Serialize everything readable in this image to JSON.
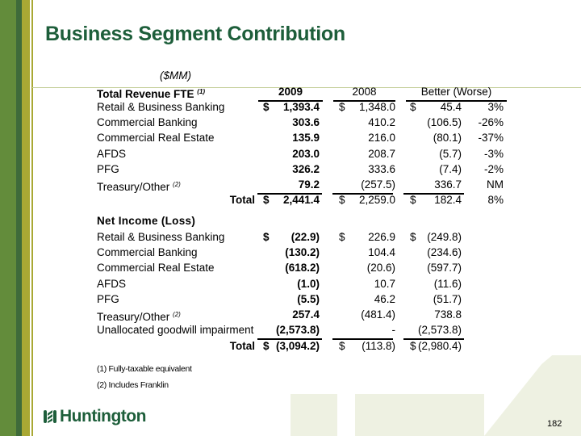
{
  "title": "Business Segment Contribution",
  "unit": "($MM)",
  "revenue_header": {
    "label": "Total Revenue FTE",
    "sup": "(1)",
    "col2009": "2009",
    "col2008": "2008",
    "colBetter": "Better (Worse)"
  },
  "revenue_rows": [
    {
      "label": "Retail & Business Banking",
      "d09": "$",
      "v09": "1,393.4",
      "d08": "$",
      "v08": "1,348.0",
      "db": "$",
      "vb": "45.4",
      "pct": "3%"
    },
    {
      "label": "Commercial Banking",
      "v09": "303.6",
      "v08": "410.2",
      "vb": "(106.5)",
      "pct": "-26%"
    },
    {
      "label": "Commercial Real Estate",
      "v09": "135.9",
      "v08": "216.0",
      "vb": "(80.1)",
      "pct": "-37%"
    },
    {
      "label": "AFDS",
      "v09": "203.0",
      "v08": "208.7",
      "vb": "(5.7)",
      "pct": "-3%"
    },
    {
      "label": "PFG",
      "v09": "326.2",
      "v08": "333.6",
      "vb": "(7.4)",
      "pct": "-2%"
    },
    {
      "label": "Treasury/Other",
      "sup": "(2)",
      "v09": "79.2",
      "v08": "(257.5)",
      "vb": "336.7",
      "pct": "NM"
    }
  ],
  "revenue_total": {
    "label": "Total",
    "d09": "$",
    "v09": "2,441.4",
    "d08": "$",
    "v08": "2,259.0",
    "db": "$",
    "vb": "182.4",
    "pct": "8%"
  },
  "income_header": {
    "label": "Net Income (Loss)"
  },
  "income_rows": [
    {
      "label": "Retail & Business Banking",
      "d09": "$",
      "v09": "(22.9)",
      "d08": "$",
      "v08": "226.9",
      "db": "$",
      "vb": "(249.8)"
    },
    {
      "label": "Commercial Banking",
      "v09": "(130.2)",
      "v08": "104.4",
      "vb": "(234.6)"
    },
    {
      "label": "Commercial Real Estate",
      "v09": "(618.2)",
      "v08": "(20.6)",
      "vb": "(597.7)"
    },
    {
      "label": "AFDS",
      "v09": "(1.0)",
      "v08": "10.7",
      "vb": "(11.6)"
    },
    {
      "label": "PFG",
      "v09": "(5.5)",
      "v08": "46.2",
      "vb": "(51.7)"
    },
    {
      "label": "Treasury/Other",
      "sup": "(2)",
      "v09": "257.4",
      "v08": "(481.4)",
      "vb": "738.8"
    },
    {
      "label": "Unallocated goodwill impairment",
      "v09": "(2,573.8)",
      "v08": "-",
      "vb": "(2,573.8)"
    }
  ],
  "income_total": {
    "label": "Total",
    "d09": "$",
    "v09": "(3,094.2)",
    "d08": "$",
    "v08": "(113.8)",
    "db": "$",
    "vb": "(2,980.4)"
  },
  "footnotes": [
    "(1) Fully-taxable equivalent",
    "(2) Includes Franklin"
  ],
  "logo_text": "Huntington",
  "page_number": "182",
  "colors": {
    "brand_green": "#1d5e3a",
    "stripe_green": "#5c8a3a",
    "stripe_olive": "#a9a834"
  }
}
